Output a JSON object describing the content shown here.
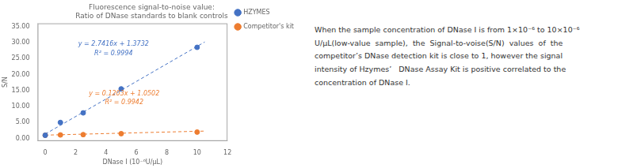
{
  "chart_data": {
    "type": "scatter",
    "title": [
      "Fluorescence signal-to-noise value:",
      "Ratio of DNase standards to blank controls"
    ],
    "xlabel": "DNase I (10⁻⁶U/μL)",
    "ylabel": "S/N",
    "xlim": [
      -0.5,
      12
    ],
    "ylim": [
      -0.8,
      36
    ],
    "xticks": [
      0,
      2,
      4,
      6,
      8,
      10,
      12
    ],
    "yticks": [
      {
        "value": 0,
        "label": "0.00"
      },
      {
        "value": 5,
        "label": "5.00"
      },
      {
        "value": 10,
        "label": "10.00"
      },
      {
        "value": 15,
        "label": "15.00"
      },
      {
        "value": 20,
        "label": "20.00"
      },
      {
        "value": 25,
        "label": "25.00"
      },
      {
        "value": 30,
        "label": "30.00"
      },
      {
        "value": 35,
        "label": "35.00"
      }
    ],
    "grid": false,
    "legend": "right",
    "series": [
      {
        "name": "HZYMES",
        "type": "scatter",
        "marker": "circle",
        "color": "#4472C4",
        "x": [
          0,
          1,
          2.5,
          5,
          10
        ],
        "values": [
          1.0,
          5.0,
          8.0,
          15.5,
          28.5
        ]
      },
      {
        "name": "Competitor's kit",
        "type": "scatter",
        "marker": "circle",
        "color": "#ED7D31",
        "x": [
          0,
          1,
          2.5,
          5,
          10
        ],
        "values": [
          1.0,
          1.1,
          1.2,
          1.5,
          2.0
        ]
      },
      {
        "type": "line",
        "line_style": "dashed",
        "color": "#4472C4",
        "x": [
          0,
          10.5
        ],
        "values": [
          1.3732,
          30.16
        ]
      },
      {
        "type": "line",
        "line_style": "dashed",
        "color": "#ED7D31",
        "x": [
          0,
          10.5
        ],
        "values": [
          1.0502,
          2.31335
        ]
      }
    ],
    "annotations": [
      {
        "text": "y = 2.7416x + 1.3732",
        "x": 4.5,
        "y": 29.0,
        "color": "#4472C4"
      },
      {
        "text": "R² = 0.9994",
        "x": 4.5,
        "y": 26.0,
        "color": "#4472C4"
      },
      {
        "text": "y = 0.1203x + 1.0502",
        "x": 5.2,
        "y": 13.5,
        "color": "#ED7D31"
      },
      {
        "text": "R² = 0.9942",
        "x": 5.2,
        "y": 10.8,
        "color": "#ED7D31"
      }
    ],
    "caption": [
      "When the sample concentration of DNase I is from 1×10⁻⁶ to 10×10⁻⁶",
      "U/μL(low-value  sample),  the  Signal-to-voise(S/N)  values  of  the",
      "competitor’s DNase detection kit is close to 1, however the signal",
      "intensity of Hzymes’   DNase Assay Kit is positive correlated to the",
      "concentration of DNase I."
    ]
  }
}
